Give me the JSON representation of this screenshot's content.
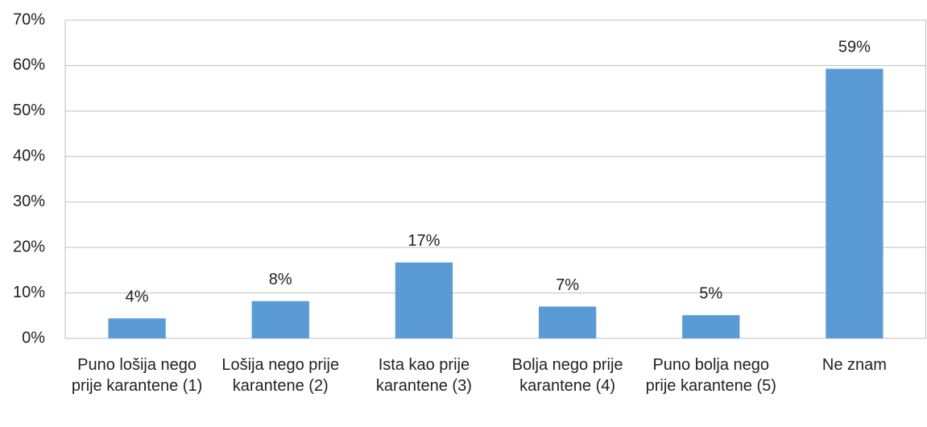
{
  "chart_data": {
    "type": "bar",
    "categories": [
      "Puno lošija nego prije karantene (1)",
      "Lošija nego prije karantene (2)",
      "Ista kao prije karantene (3)",
      "Bolja nego prije karantene (4)",
      "Puno bolja nego prije karantene (5)",
      "Ne znam"
    ],
    "values": [
      4.4,
      8.2,
      16.7,
      7.0,
      5.1,
      59.3
    ],
    "value_labels": [
      "4%",
      "8%",
      "17%",
      "7%",
      "5%",
      "59%"
    ],
    "color": "#5b9bd5",
    "ylim": [
      0,
      70
    ],
    "yticks": [
      {
        "value": 0,
        "label": "0%"
      },
      {
        "value": 10,
        "label": "10%"
      },
      {
        "value": 20,
        "label": "20%"
      },
      {
        "value": 30,
        "label": "30%"
      },
      {
        "value": 40,
        "label": "40%"
      },
      {
        "value": 50,
        "label": "50%"
      },
      {
        "value": 60,
        "label": "60%"
      },
      {
        "value": 70,
        "label": "70%"
      }
    ],
    "grid": true
  }
}
